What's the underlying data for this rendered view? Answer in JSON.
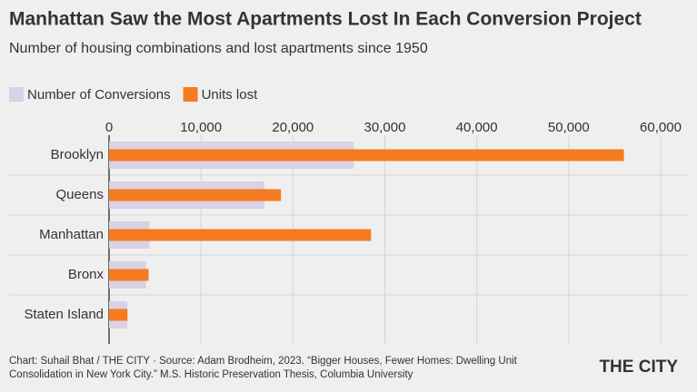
{
  "chart_data": {
    "type": "hbar",
    "title": "Manhattan Saw the Most Apartments Lost In Each Conversion Project",
    "subtitle": "Number of housing combinations and lost apartments since 1950",
    "categories": [
      "Brooklyn",
      "Queens",
      "Manhattan",
      "Bronx",
      "Staten Island"
    ],
    "series": [
      {
        "name": "Number of Conversions",
        "color": "#d9d1e4",
        "values": [
          26600,
          16900,
          4400,
          4000,
          2000
        ]
      },
      {
        "name": "Units lost",
        "color": "#f47b20",
        "values": [
          56000,
          18700,
          28500,
          4300,
          2000
        ]
      }
    ],
    "xlim": [
      0,
      60000
    ],
    "xticks": [
      0,
      {
        "value": 10000,
        "label": "10,000"
      },
      {
        "value": 20000,
        "label": "20,000"
      },
      {
        "value": 30000,
        "label": "30,000"
      },
      {
        "value": 40000,
        "label": "40,000"
      },
      {
        "value": 50000,
        "label": "50,000"
      },
      {
        "value": 60000,
        "label": "60,000"
      }
    ],
    "grid": true,
    "source_line1": "Chart: Suhail Bhat / THE CITY · Source: Adam Brodheim, 2023. “Bigger Houses, Fewer Homes: Dwelling Unit",
    "source_line2": "Consolidation in New York City.” M.S. Historic Preservation Thesis, Columbia University",
    "logo": "THE CITY"
  }
}
